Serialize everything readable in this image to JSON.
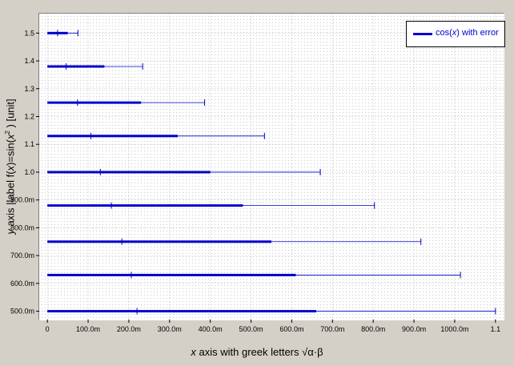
{
  "chart_data": {
    "type": "bar",
    "orientation": "horizontal",
    "xlabel_prefix": "x",
    "xlabel_text": " axis with greek letters ",
    "xlabel_formula": "√α·β",
    "ylabel_prefix": "y",
    "ylabel_text": " axis |label f(",
    "ylabel_var": "x",
    "ylabel_mid": ")=sin(",
    "ylabel_var2": "x",
    "ylabel_sup": "2",
    "ylabel_suffix": " ) [unit]",
    "legend_position": "top-right",
    "series": [
      {
        "name_prefix": "cos(",
        "name_var": "x",
        "name_suffix": ") with error",
        "color": "#0000cc",
        "y": [
          1.5,
          1.38,
          1.25,
          1.13,
          1.0,
          0.88,
          0.75,
          0.63,
          0.5
        ],
        "values": [
          0.05,
          0.14,
          0.23,
          0.32,
          0.4,
          0.48,
          0.55,
          0.61,
          0.66
        ],
        "error": [
          0.025,
          0.094,
          0.156,
          0.213,
          0.27,
          0.323,
          0.367,
          0.404,
          0.44
        ]
      }
    ],
    "x_ticks": [
      "0",
      "100.0m",
      "200.0m",
      "300.0m",
      "400.0m",
      "500.0m",
      "600.0m",
      "700.0m",
      "800.0m",
      "900.0m",
      "1000.0m",
      "1.1"
    ],
    "y_ticks": [
      "500.0m",
      "600.0m",
      "700.0m",
      "800.0m",
      "900.0m",
      "1.0",
      "1.1",
      "1.2",
      "1.3",
      "1.4",
      "1.5"
    ],
    "xlim": [
      -0.02,
      1.12
    ],
    "ylim": [
      0.47,
      1.57
    ],
    "grid": true
  }
}
